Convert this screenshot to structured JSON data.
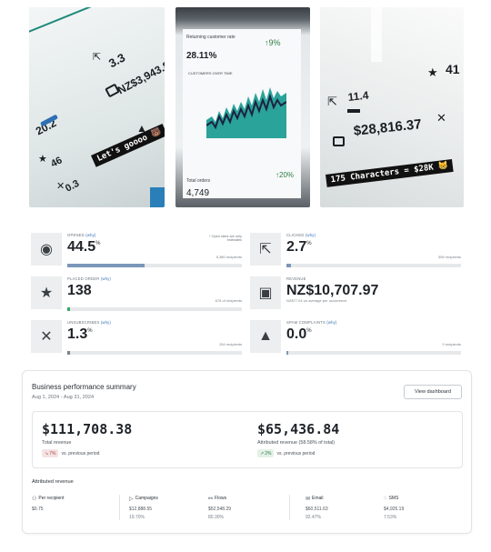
{
  "photos": {
    "photo1": {
      "values": [
        "3.3",
        "NZ$3,943.8",
        "20.2",
        "46",
        "0.3"
      ],
      "banner": "Let's goooo 🐻",
      "icons": [
        "external-link-icon",
        "money-icon",
        "warning-icon",
        "star-icon",
        "close-icon"
      ]
    },
    "photo2": {
      "label_top": "Returning customer rate",
      "value_top": "28.11%",
      "change_top": "↑9%",
      "chart_label": "CUSTOMERS OVER TIME",
      "label_bottom": "Total orders",
      "value_bottom": "4,749",
      "change_bottom": "↑20%"
    },
    "photo3": {
      "values": [
        "41",
        "11.4",
        "$28,816.37"
      ],
      "banner": "175 Characters = $28K 😸",
      "icons": [
        "star-icon",
        "external-link-icon",
        "close-icon",
        "money-icon"
      ]
    }
  },
  "stats": {
    "opened": {
      "label": "OPENED",
      "why": "(why)",
      "value": "44.5",
      "unit": "%",
      "note": "* Open rates are only estimates",
      "recipients": "5,380 recipients",
      "progress": 0.445
    },
    "clicked": {
      "label": "CLICKED",
      "why": "(why)",
      "value": "2.7",
      "unit": "%",
      "recipients": "559 recipients",
      "progress": 0.027
    },
    "placed_order": {
      "label": "PLACED ORDER",
      "why": "(why)",
      "value": "138",
      "recipients": "676 of recipients",
      "progress": 0.01
    },
    "revenue": {
      "label": "REVENUE",
      "value": "NZ$10,707.97",
      "sub": "NZ$77.04 on average per occurrence"
    },
    "unsubscribes": {
      "label": "UNSUBSCRIBES",
      "why": "(why)",
      "value": "1.3",
      "unit": "%",
      "recipients": "264 recipients",
      "progress": 0.013
    },
    "spam": {
      "label": "SPAM COMPLAINTS",
      "why": "(why)",
      "value": "0.0",
      "unit": "%",
      "recipients": "0 recipients",
      "progress": 0.0
    }
  },
  "summary": {
    "title": "Business performance summary",
    "date_range": "Aug 1, 2024 - Aug 31, 2024",
    "view_button": "View dashboard",
    "total_revenue": {
      "value": "$111,708.38",
      "label": "Total revenue",
      "change": "7%",
      "direction": "down",
      "compare": "vs. previous period"
    },
    "attributed_revenue": {
      "value": "$65,436.84",
      "label": "Attributed revenue (58.58% of total)",
      "change": "2%",
      "direction": "up",
      "compare": "vs. previous period"
    },
    "attributed_title": "Attributed revenue",
    "columns": [
      {
        "label": "Per recipient",
        "icon": "people-icon",
        "value": "$0.75",
        "pct": ""
      },
      {
        "label": "Campaigns",
        "icon": "send-icon",
        "value": "$12,888.55",
        "pct": "19.70%"
      },
      {
        "label": "Flows",
        "icon": "flow-icon",
        "value": "$52,548.29",
        "pct": "80.30%"
      },
      {
        "label": "Email",
        "icon": "email-icon",
        "value": "$60,511.63",
        "pct": "92.47%"
      },
      {
        "label": "SMS",
        "icon": "sms-icon",
        "value": "$4,925.19",
        "pct": "7.53%"
      }
    ]
  }
}
